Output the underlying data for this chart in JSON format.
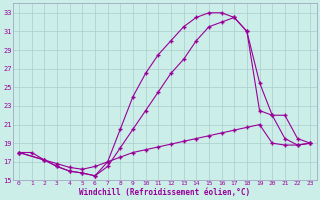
{
  "xlabel": "Windchill (Refroidissement éolien,°C)",
  "bg_color": "#cceee8",
  "grid_color": "#aacccc",
  "line_color": "#990099",
  "xlim": [
    -0.5,
    23.5
  ],
  "ylim": [
    15,
    34
  ],
  "yticks": [
    15,
    17,
    19,
    21,
    23,
    25,
    27,
    29,
    31,
    33
  ],
  "xticks": [
    0,
    1,
    2,
    3,
    4,
    5,
    6,
    7,
    8,
    9,
    10,
    11,
    12,
    13,
    14,
    15,
    16,
    17,
    18,
    19,
    20,
    21,
    22,
    23
  ],
  "line1_x": [
    0,
    1,
    2,
    3,
    4,
    5,
    6,
    7,
    8,
    9,
    10,
    11,
    12,
    13,
    14,
    15,
    16,
    17,
    18,
    19,
    20,
    21,
    22,
    23
  ],
  "line1_y": [
    18.0,
    18.0,
    17.2,
    16.8,
    16.4,
    16.2,
    16.5,
    17.0,
    17.5,
    18.0,
    18.3,
    18.6,
    18.9,
    19.2,
    19.5,
    19.8,
    20.1,
    20.4,
    20.7,
    21.0,
    19.0,
    18.8,
    18.8,
    19.0
  ],
  "line2_x": [
    0,
    2,
    3,
    4,
    5,
    6,
    7,
    8,
    9,
    10,
    11,
    12,
    13,
    14,
    15,
    16,
    17,
    18,
    19,
    20,
    21,
    22,
    23
  ],
  "line2_y": [
    18.0,
    17.2,
    16.5,
    16.0,
    15.8,
    15.5,
    17.0,
    20.5,
    24.0,
    26.5,
    28.5,
    30.0,
    31.5,
    32.5,
    33.0,
    33.0,
    32.5,
    31.0,
    22.5,
    22.0,
    19.5,
    18.8,
    19.0
  ],
  "line3_x": [
    0,
    2,
    3,
    4,
    5,
    6,
    7,
    8,
    9,
    10,
    11,
    12,
    13,
    14,
    15,
    16,
    17,
    18,
    19,
    20,
    21,
    22,
    23
  ],
  "line3_y": [
    18.0,
    17.2,
    16.5,
    16.0,
    15.8,
    15.5,
    16.5,
    18.5,
    20.5,
    22.5,
    24.5,
    26.5,
    28.0,
    30.0,
    31.5,
    32.0,
    32.5,
    31.0,
    25.5,
    22.0,
    22.0,
    19.5,
    19.0
  ]
}
